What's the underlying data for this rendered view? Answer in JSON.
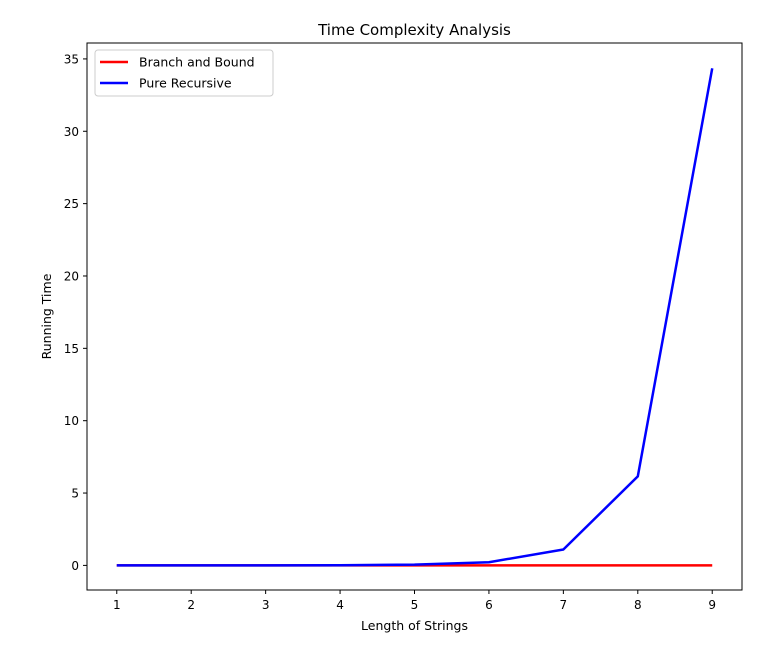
{
  "chart_data": {
    "type": "line",
    "title": "Time Complexity Analysis",
    "xlabel": "Length of Strings",
    "ylabel": "Running Time",
    "x": [
      1,
      2,
      3,
      4,
      5,
      6,
      7,
      8,
      9
    ],
    "xlim": [
      0.6,
      9.4
    ],
    "ylim": [
      -1.7,
      36.1
    ],
    "xticks": [
      1,
      2,
      3,
      4,
      5,
      6,
      7,
      8,
      9
    ],
    "yticks": [
      0,
      5,
      10,
      15,
      20,
      25,
      30,
      35
    ],
    "grid": false,
    "legend_position": "top-left",
    "series": [
      {
        "name": "Branch and Bound",
        "color": "#ff0000",
        "values": [
          0,
          0,
          0,
          0,
          0,
          0,
          0,
          0,
          0
        ]
      },
      {
        "name": "Pure Recursive",
        "color": "#0000ff",
        "values": [
          0,
          0,
          0,
          0.01,
          0.05,
          0.22,
          1.1,
          6.15,
          34.35
        ]
      }
    ]
  }
}
